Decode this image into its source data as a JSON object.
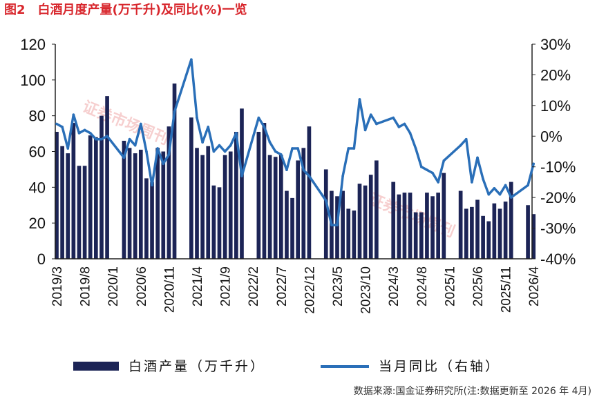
{
  "figure": {
    "title": "图2　白酒月度产量(万千升)及同比(%)一览",
    "source": "数据来源:国金证券研究所(注:数据更新至 2026 年 4月)",
    "watermark": "证券市场周刊"
  },
  "colors": {
    "title": "#d8272d",
    "bar": "#1c2456",
    "line": "#2a6fb8",
    "axis": "#222222"
  },
  "chart_data": {
    "type": "bar",
    "series": [
      {
        "name": "白酒产量（万千升）",
        "type": "bar",
        "axis": "left",
        "values": [
          {
            "x": "2019/3",
            "y": 71
          },
          {
            "x": "2019/4",
            "y": 63
          },
          {
            "x": "2019/5",
            "y": 59
          },
          {
            "x": "2019/6",
            "y": 76
          },
          {
            "x": "2019/7",
            "y": 52
          },
          {
            "x": "2019/8",
            "y": 52
          },
          {
            "x": "2019/9",
            "y": 69
          },
          {
            "x": "2019/10",
            "y": 68
          },
          {
            "x": "2019/11",
            "y": 80
          },
          {
            "x": "2019/12",
            "y": 91
          },
          {
            "x": "2020/3",
            "y": 66
          },
          {
            "x": "2020/4",
            "y": 62
          },
          {
            "x": "2020/5",
            "y": 59
          },
          {
            "x": "2020/6",
            "y": 61
          },
          {
            "x": "2020/7",
            "y": 45
          },
          {
            "x": "2020/8",
            "y": 43
          },
          {
            "x": "2020/9",
            "y": 62
          },
          {
            "x": "2020/10",
            "y": 60
          },
          {
            "x": "2020/11",
            "y": 74
          },
          {
            "x": "2020/12",
            "y": 98
          },
          {
            "x": "2021/3",
            "y": 79
          },
          {
            "x": "2021/4",
            "y": 62
          },
          {
            "x": "2021/5",
            "y": 58
          },
          {
            "x": "2021/6",
            "y": 63
          },
          {
            "x": "2021/7",
            "y": 41
          },
          {
            "x": "2021/8",
            "y": 40
          },
          {
            "x": "2021/9",
            "y": 58
          },
          {
            "x": "2021/10",
            "y": 60
          },
          {
            "x": "2021/11",
            "y": 71
          },
          {
            "x": "2021/12",
            "y": 84
          },
          {
            "x": "2022/3",
            "y": 71
          },
          {
            "x": "2022/4",
            "y": 76
          },
          {
            "x": "2022/5",
            "y": 58
          },
          {
            "x": "2022/6",
            "y": 57
          },
          {
            "x": "2022/7",
            "y": 58
          },
          {
            "x": "2022/8",
            "y": 38
          },
          {
            "x": "2022/9",
            "y": 34
          },
          {
            "x": "2022/10",
            "y": 55
          },
          {
            "x": "2022/11",
            "y": 62
          },
          {
            "x": "2022/12",
            "y": 74
          },
          {
            "x": "2023/3",
            "y": 50
          },
          {
            "x": "2023/4",
            "y": 38
          },
          {
            "x": "2023/5",
            "y": 35
          },
          {
            "x": "2023/6",
            "y": 38
          },
          {
            "x": "2023/7",
            "y": 28
          },
          {
            "x": "2023/8",
            "y": 27
          },
          {
            "x": "2023/9",
            "y": 42
          },
          {
            "x": "2023/10",
            "y": 41
          },
          {
            "x": "2023/11",
            "y": 47
          },
          {
            "x": "2023/12",
            "y": 55
          },
          {
            "x": "2024/3",
            "y": 43
          },
          {
            "x": "2024/4",
            "y": 36
          },
          {
            "x": "2024/5",
            "y": 37
          },
          {
            "x": "2024/6",
            "y": 37
          },
          {
            "x": "2024/7",
            "y": 26
          },
          {
            "x": "2024/8",
            "y": 26
          },
          {
            "x": "2024/9",
            "y": 37
          },
          {
            "x": "2024/10",
            "y": 35
          },
          {
            "x": "2024/11",
            "y": 37
          },
          {
            "x": "2024/12",
            "y": 48
          },
          {
            "x": "2025/3",
            "y": 38
          },
          {
            "x": "2025/4",
            "y": 28
          },
          {
            "x": "2025/5",
            "y": 29
          },
          {
            "x": "2025/6",
            "y": 33
          },
          {
            "x": "2025/7",
            "y": 24
          },
          {
            "x": "2025/8",
            "y": 21
          },
          {
            "x": "2025/9",
            "y": 31
          },
          {
            "x": "2025/10",
            "y": 28
          },
          {
            "x": "2025/11",
            "y": 32
          },
          {
            "x": "2025/12",
            "y": 43
          },
          {
            "x": "2026/3",
            "y": 30
          },
          {
            "x": "2026/4",
            "y": 25
          }
        ]
      },
      {
        "name": "当月同比（右轴）",
        "type": "line",
        "axis": "right",
        "values": [
          {
            "x": "2019/3",
            "y": 4
          },
          {
            "x": "2019/4",
            "y": 3
          },
          {
            "x": "2019/5",
            "y": -4
          },
          {
            "x": "2019/6",
            "y": 7
          },
          {
            "x": "2019/7",
            "y": 1
          },
          {
            "x": "2019/8",
            "y": 2
          },
          {
            "x": "2019/9",
            "y": 1
          },
          {
            "x": "2019/10",
            "y": -1
          },
          {
            "x": "2019/11",
            "y": -1
          },
          {
            "x": "2019/12",
            "y": 0
          },
          {
            "x": "2020/3",
            "y": -7
          },
          {
            "x": "2020/4",
            "y": -1
          },
          {
            "x": "2020/5",
            "y": -3
          },
          {
            "x": "2020/6",
            "y": 4
          },
          {
            "x": "2020/7",
            "y": -5
          },
          {
            "x": "2020/8",
            "y": -16
          },
          {
            "x": "2020/9",
            "y": -4
          },
          {
            "x": "2020/10",
            "y": -9
          },
          {
            "x": "2020/11",
            "y": -6
          },
          {
            "x": "2020/12",
            "y": 8
          },
          {
            "x": "2021/3",
            "y": 25
          },
          {
            "x": "2021/4",
            "y": 6
          },
          {
            "x": "2021/5",
            "y": -2
          },
          {
            "x": "2021/6",
            "y": 3
          },
          {
            "x": "2021/7",
            "y": -5
          },
          {
            "x": "2021/8",
            "y": -3
          },
          {
            "x": "2021/9",
            "y": -5
          },
          {
            "x": "2021/10",
            "y": -3
          },
          {
            "x": "2021/11",
            "y": 1
          },
          {
            "x": "2021/12",
            "y": -13
          },
          {
            "x": "2022/3",
            "y": 6
          },
          {
            "x": "2022/4",
            "y": 3
          },
          {
            "x": "2022/5",
            "y": -2
          },
          {
            "x": "2022/6",
            "y": -5
          },
          {
            "x": "2022/7",
            "y": -6
          },
          {
            "x": "2022/8",
            "y": -11
          },
          {
            "x": "2022/9",
            "y": -4
          },
          {
            "x": "2022/10",
            "y": -4
          },
          {
            "x": "2022/11",
            "y": -11
          },
          {
            "x": "2022/12",
            "y": -13
          },
          {
            "x": "2023/3",
            "y": -21
          },
          {
            "x": "2023/4",
            "y": -29
          },
          {
            "x": "2023/5",
            "y": -29
          },
          {
            "x": "2023/6",
            "y": -13
          },
          {
            "x": "2023/7",
            "y": -4
          },
          {
            "x": "2023/8",
            "y": -4
          },
          {
            "x": "2023/9",
            "y": 12
          },
          {
            "x": "2023/10",
            "y": 2
          },
          {
            "x": "2023/11",
            "y": 7
          },
          {
            "x": "2023/12",
            "y": 4
          },
          {
            "x": "2024/3",
            "y": 6
          },
          {
            "x": "2024/4",
            "y": 3
          },
          {
            "x": "2024/5",
            "y": 4
          },
          {
            "x": "2024/6",
            "y": 1
          },
          {
            "x": "2024/7",
            "y": -4
          },
          {
            "x": "2024/8",
            "y": -10
          },
          {
            "x": "2024/9",
            "y": -11
          },
          {
            "x": "2024/10",
            "y": -12
          },
          {
            "x": "2024/11",
            "y": -15
          },
          {
            "x": "2024/12",
            "y": -8
          },
          {
            "x": "2025/3",
            "y": -3
          },
          {
            "x": "2025/4",
            "y": -1
          },
          {
            "x": "2025/5",
            "y": -15
          },
          {
            "x": "2025/6",
            "y": -7
          },
          {
            "x": "2025/7",
            "y": -14
          },
          {
            "x": "2025/8",
            "y": -19
          },
          {
            "x": "2025/9",
            "y": -17
          },
          {
            "x": "2025/10",
            "y": -19
          },
          {
            "x": "2025/11",
            "y": -16
          },
          {
            "x": "2025/12",
            "y": -20
          },
          {
            "x": "2026/3",
            "y": -16
          },
          {
            "x": "2026/4",
            "y": -9
          }
        ]
      }
    ],
    "x_tick_labels": [
      "2019/3",
      "2019/8",
      "2020/1",
      "2020/6",
      "2020/11",
      "2021/4",
      "2021/9",
      "2022/2",
      "2022/7",
      "2022/12",
      "2023/5",
      "2023/10",
      "2024/3",
      "2024/8",
      "2025/1",
      "2025/6",
      "2025/11",
      "2026/4"
    ],
    "y_left": {
      "ylim": [
        0,
        120
      ],
      "ticks": [
        "0",
        "20",
        "40",
        "60",
        "80",
        "100",
        "120"
      ]
    },
    "y_right": {
      "ylim": [
        -40,
        30
      ],
      "ticks": [
        "-40%",
        "-30%",
        "-20%",
        "-10%",
        "0%",
        "10%",
        "20%",
        "30%"
      ]
    },
    "grid": false,
    "legend_position": "bottom"
  }
}
